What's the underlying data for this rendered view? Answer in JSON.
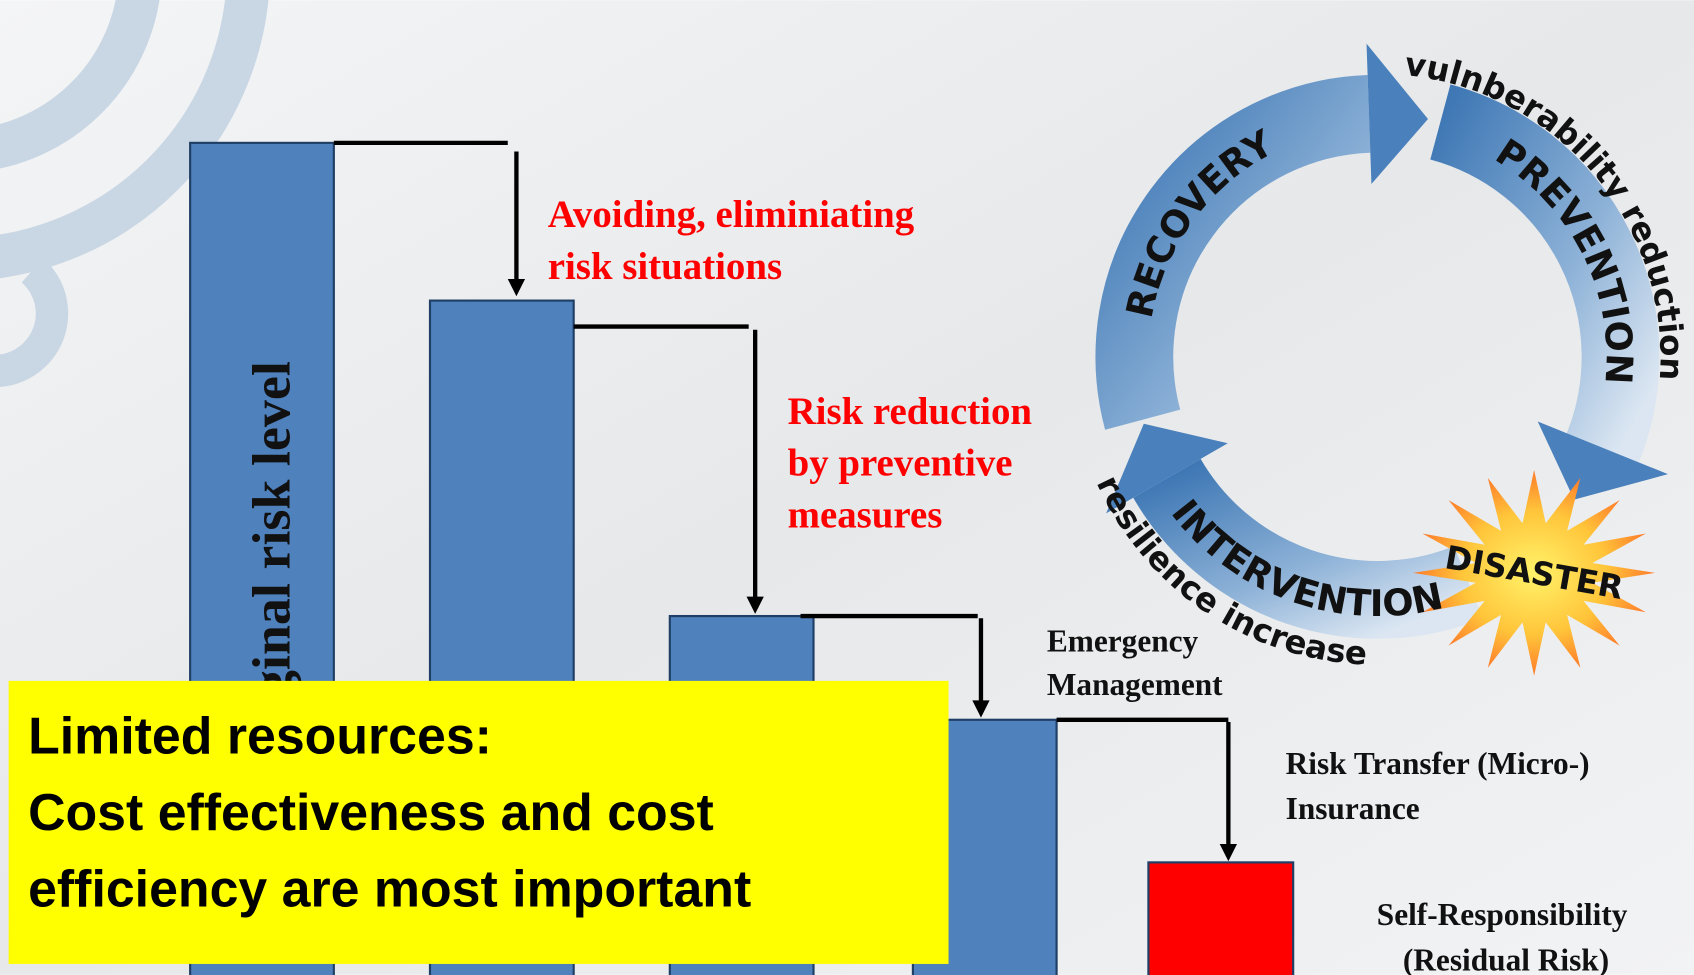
{
  "diagram": {
    "bar_label": "Original risk level",
    "steps": [
      {
        "lines": [
          "Avoiding, eliminiating",
          "risk situations"
        ]
      },
      {
        "lines": [
          "Risk reduction",
          "by preventive",
          "measures"
        ]
      },
      {
        "lines": [
          "Emergency",
          "Management"
        ]
      },
      {
        "lines": [
          "Risk Transfer (Micro-)",
          "Insurance"
        ]
      },
      {
        "lines": [
          "Self-Responsibility",
          "(Residual Risk)"
        ]
      }
    ],
    "callout": [
      "Limited resources:",
      "Cost effectiveness and cost",
      "efficiency are most important"
    ],
    "cycle": {
      "recovery": "RECOVERY",
      "prevention": "PREVENTION",
      "intervention": "INTERVENTION",
      "disaster": "DISASTER",
      "outer_top": "vulnberability reduction",
      "outer_bottom": "resilience increase"
    }
  }
}
